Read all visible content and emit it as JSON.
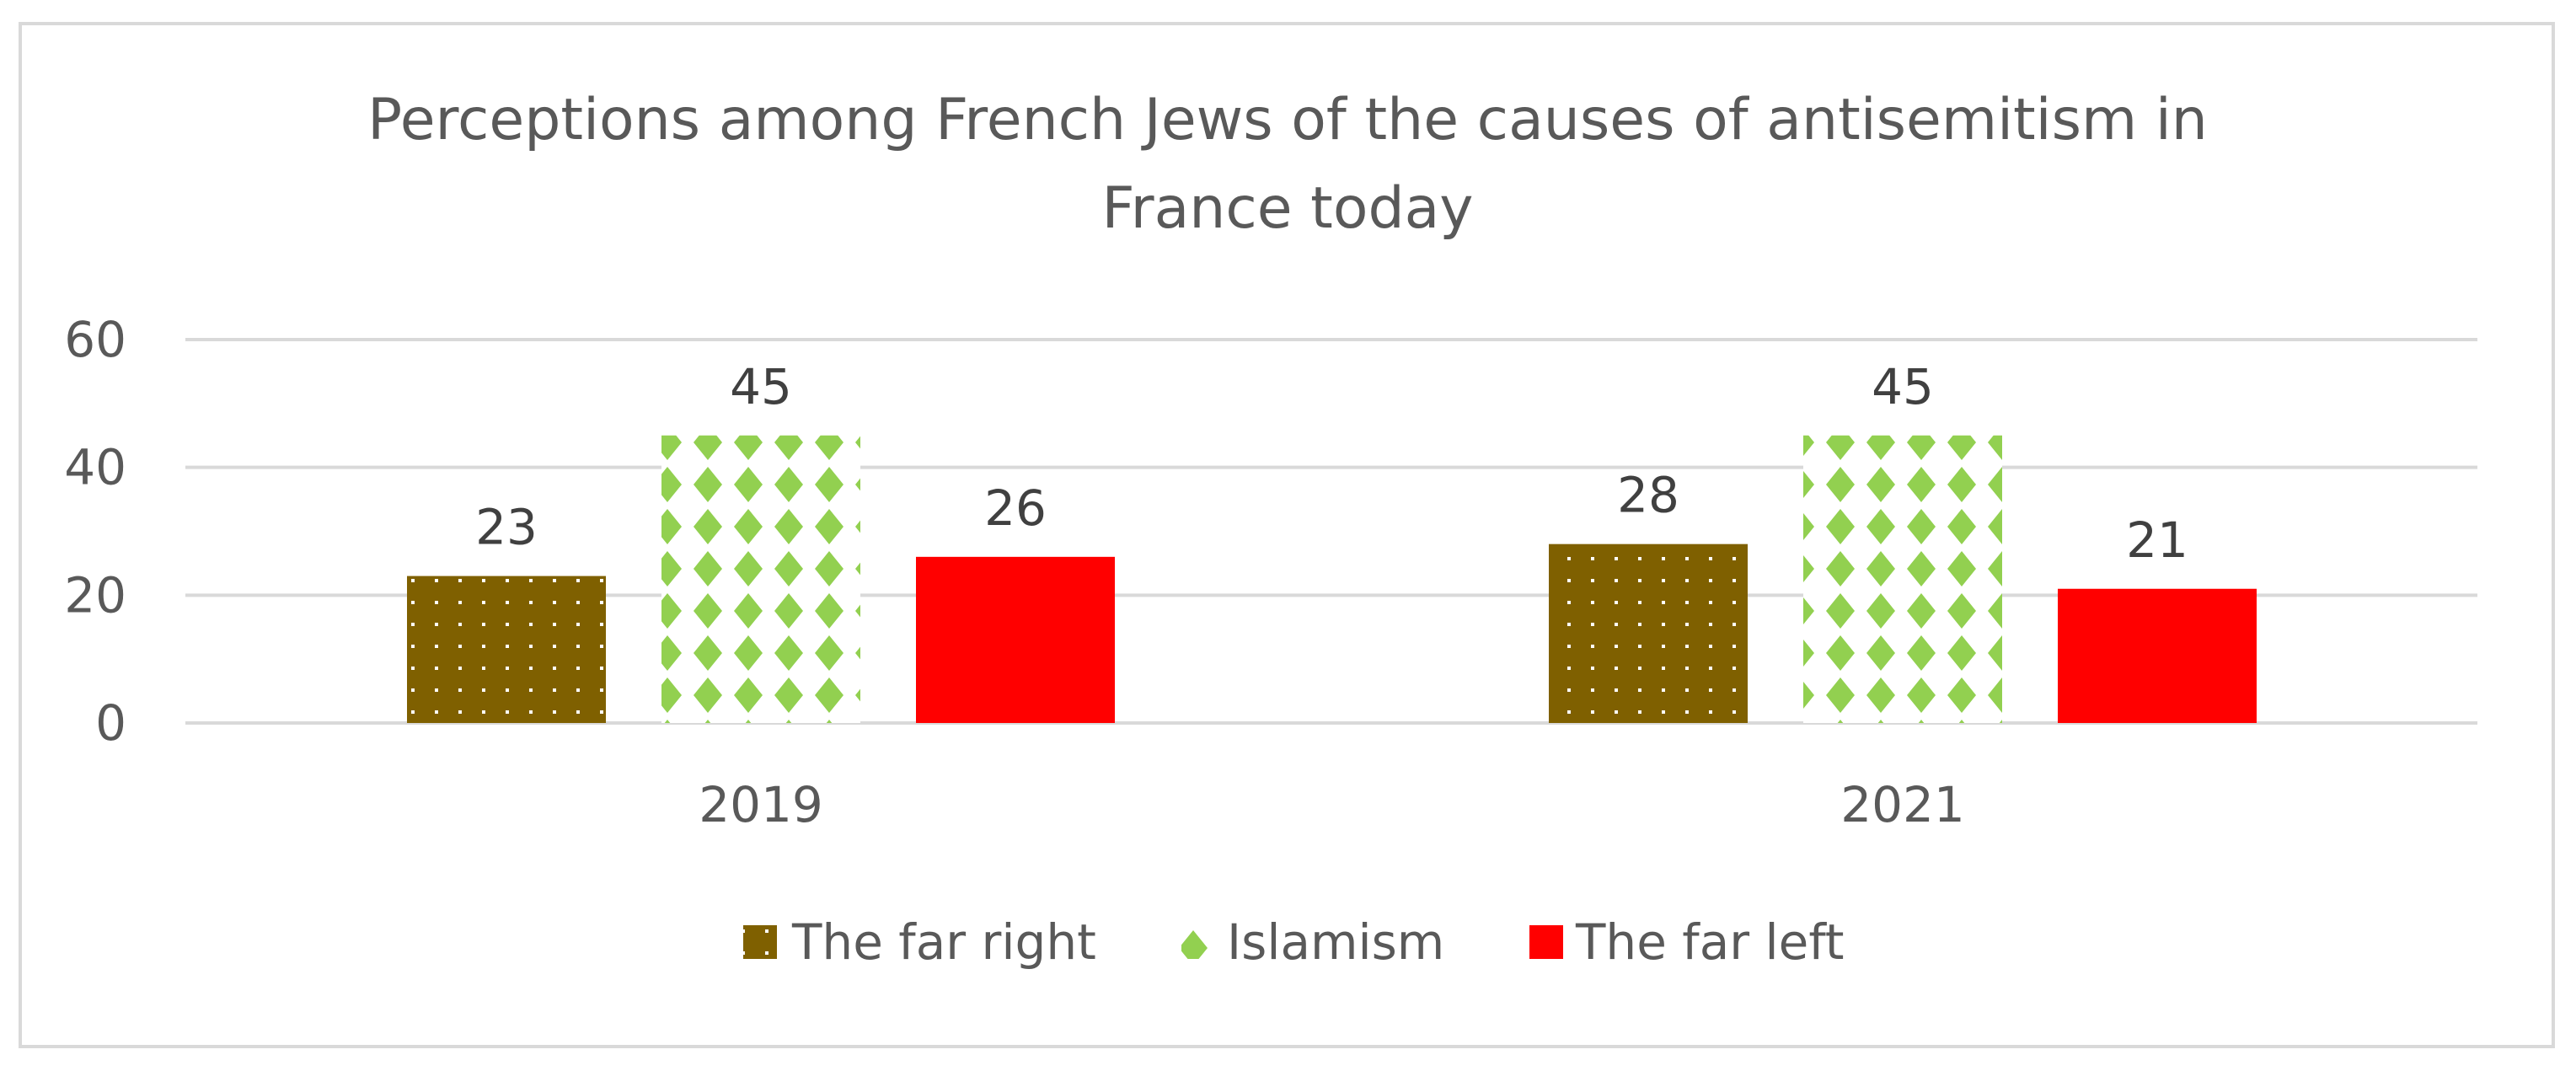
{
  "chart_data": {
    "type": "bar",
    "title": "Perceptions among French Jews of the causes of antisemitism  in France today",
    "title_lines": [
      "Perceptions among French Jews of the causes of antisemitism  in",
      "France today"
    ],
    "categories": [
      "2019",
      "2021"
    ],
    "series": [
      {
        "name": "The far right",
        "values": [
          23,
          28
        ],
        "color": "#7f6000",
        "pattern": "dots"
      },
      {
        "name": "Islamism",
        "values": [
          45,
          45
        ],
        "color": "#92d050",
        "pattern": "diamonds"
      },
      {
        "name": "The far left",
        "values": [
          26,
          21
        ],
        "color": "#ff0000",
        "pattern": "solid"
      }
    ],
    "y_ticks": [
      "0",
      "20",
      "40",
      "60"
    ],
    "ylim": [
      0,
      60
    ],
    "xlabel": "",
    "ylabel": "",
    "grid": true,
    "legend_position": "bottom"
  }
}
